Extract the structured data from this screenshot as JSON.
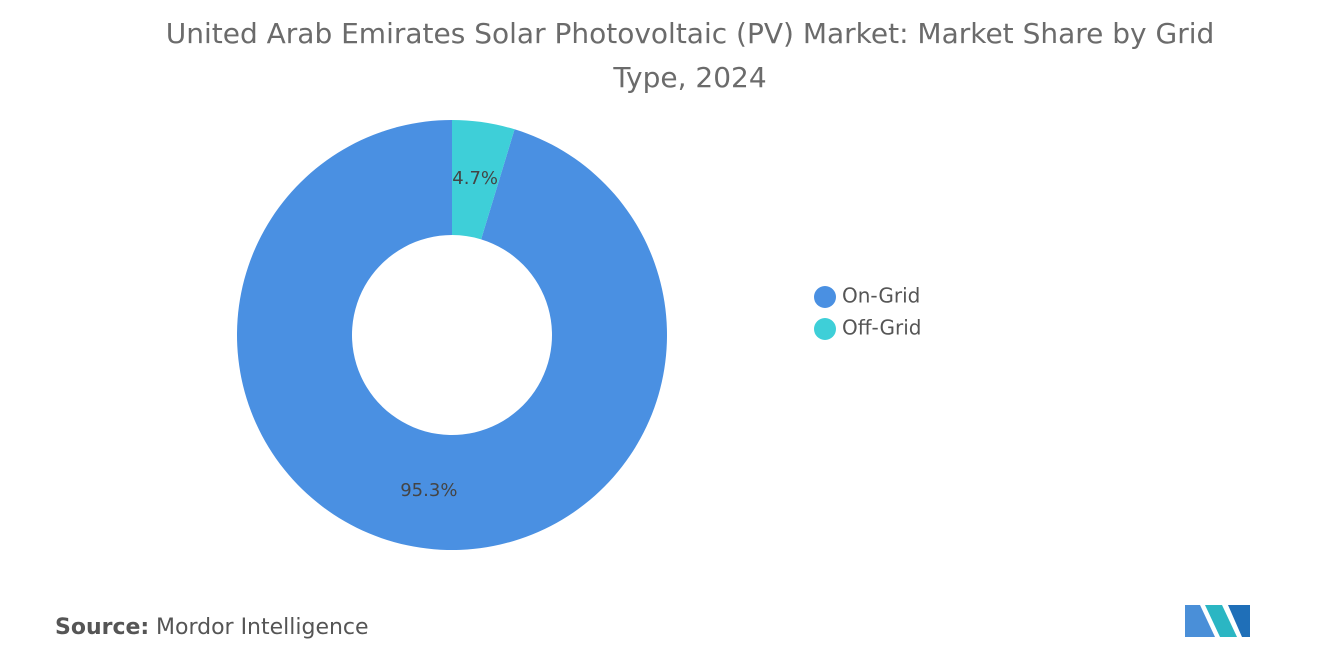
{
  "chart_data": {
    "type": "donut",
    "title": "United Arab Emirates Solar Photovoltaic (PV) Market: Market Share by Grid Type, 2024",
    "categories": [
      "On-Grid",
      "Off-Grid"
    ],
    "values": [
      95.3,
      4.7
    ],
    "value_labels": [
      "95.3%",
      "4.7%"
    ],
    "colors": [
      "#4a90e2",
      "#3ecfd8"
    ],
    "legend": "right",
    "source_label": "Source:",
    "source": "Mordor Intelligence"
  }
}
